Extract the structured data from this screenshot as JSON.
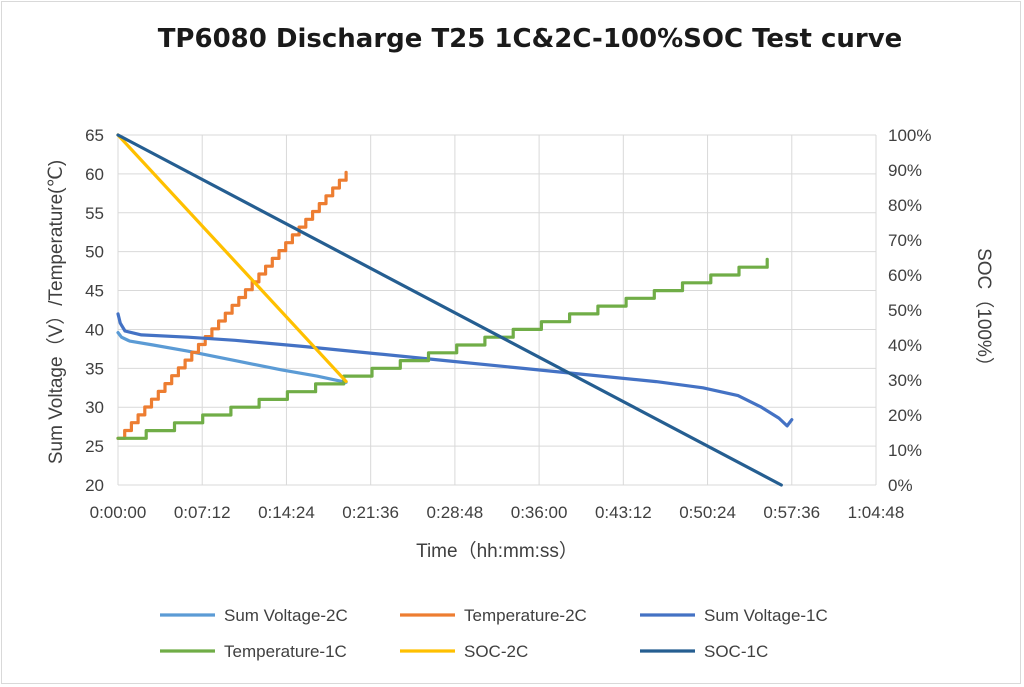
{
  "chart_data": {
    "type": "line",
    "title": "TP6080  Discharge T25 1C&2C-100%SOC  Test curve",
    "xlabel": "Time（hh:mm:ss）",
    "ylabel_left": "Sum Voltage（V）/Temperature(℃)",
    "ylabel_right": "SOC（100%）",
    "x_unit": "minutes",
    "xlim": [
      0,
      64.8
    ],
    "x_ticks": [
      "0:00:00",
      "0:07:12",
      "0:14:24",
      "0:21:36",
      "0:28:48",
      "0:36:00",
      "0:43:12",
      "0:50:24",
      "0:57:36",
      "1:04:48"
    ],
    "ylim_left": [
      20,
      65
    ],
    "y_ticks_left": [
      "20",
      "25",
      "30",
      "35",
      "40",
      "45",
      "50",
      "55",
      "60",
      "65"
    ],
    "ylim_right": [
      0,
      100
    ],
    "y_ticks_right": [
      "0%",
      "10%",
      "20%",
      "30%",
      "40%",
      "50%",
      "60%",
      "70%",
      "80%",
      "90%",
      "100%"
    ],
    "grid": true,
    "legend_position": "bottom",
    "series": [
      {
        "name": "Sum Voltage-2C",
        "color": "#5b9bd5",
        "axis": "left",
        "step": false,
        "x": [
          0,
          0.3,
          1,
          3,
          6,
          10,
          14,
          17,
          19.5
        ],
        "y": [
          39.6,
          39.0,
          38.5,
          38.0,
          37.2,
          36.0,
          34.8,
          34.0,
          33.2
        ]
      },
      {
        "name": "Temperature-2C",
        "color": "#ed7d31",
        "axis": "left",
        "step": true,
        "x": [
          0,
          19.5
        ],
        "y": [
          26,
          60.2
        ]
      },
      {
        "name": "Sum Voltage-1C",
        "color": "#4472c4",
        "axis": "left",
        "step": false,
        "x": [
          0,
          0.2,
          0.6,
          2,
          6,
          10,
          16,
          22,
          28,
          34,
          40,
          46,
          50,
          53,
          55,
          56.5,
          57.2,
          57.6
        ],
        "y": [
          42.0,
          40.8,
          39.8,
          39.3,
          39.0,
          38.6,
          37.8,
          36.9,
          36.0,
          35.1,
          34.2,
          33.3,
          32.5,
          31.5,
          30.0,
          28.6,
          27.6,
          28.4
        ]
      },
      {
        "name": "Temperature-1C",
        "color": "#70ad47",
        "axis": "left",
        "step": true,
        "x": [
          0,
          55.5
        ],
        "y": [
          26,
          49
        ]
      },
      {
        "name": "SOC-2C",
        "color": "#ffc000",
        "axis": "right",
        "step": false,
        "x": [
          0,
          19.5
        ],
        "y": [
          100,
          29.6
        ]
      },
      {
        "name": "SOC-1C",
        "color": "#255e91",
        "axis": "right",
        "step": false,
        "x": [
          0,
          56.7
        ],
        "y": [
          100,
          0
        ]
      }
    ]
  }
}
